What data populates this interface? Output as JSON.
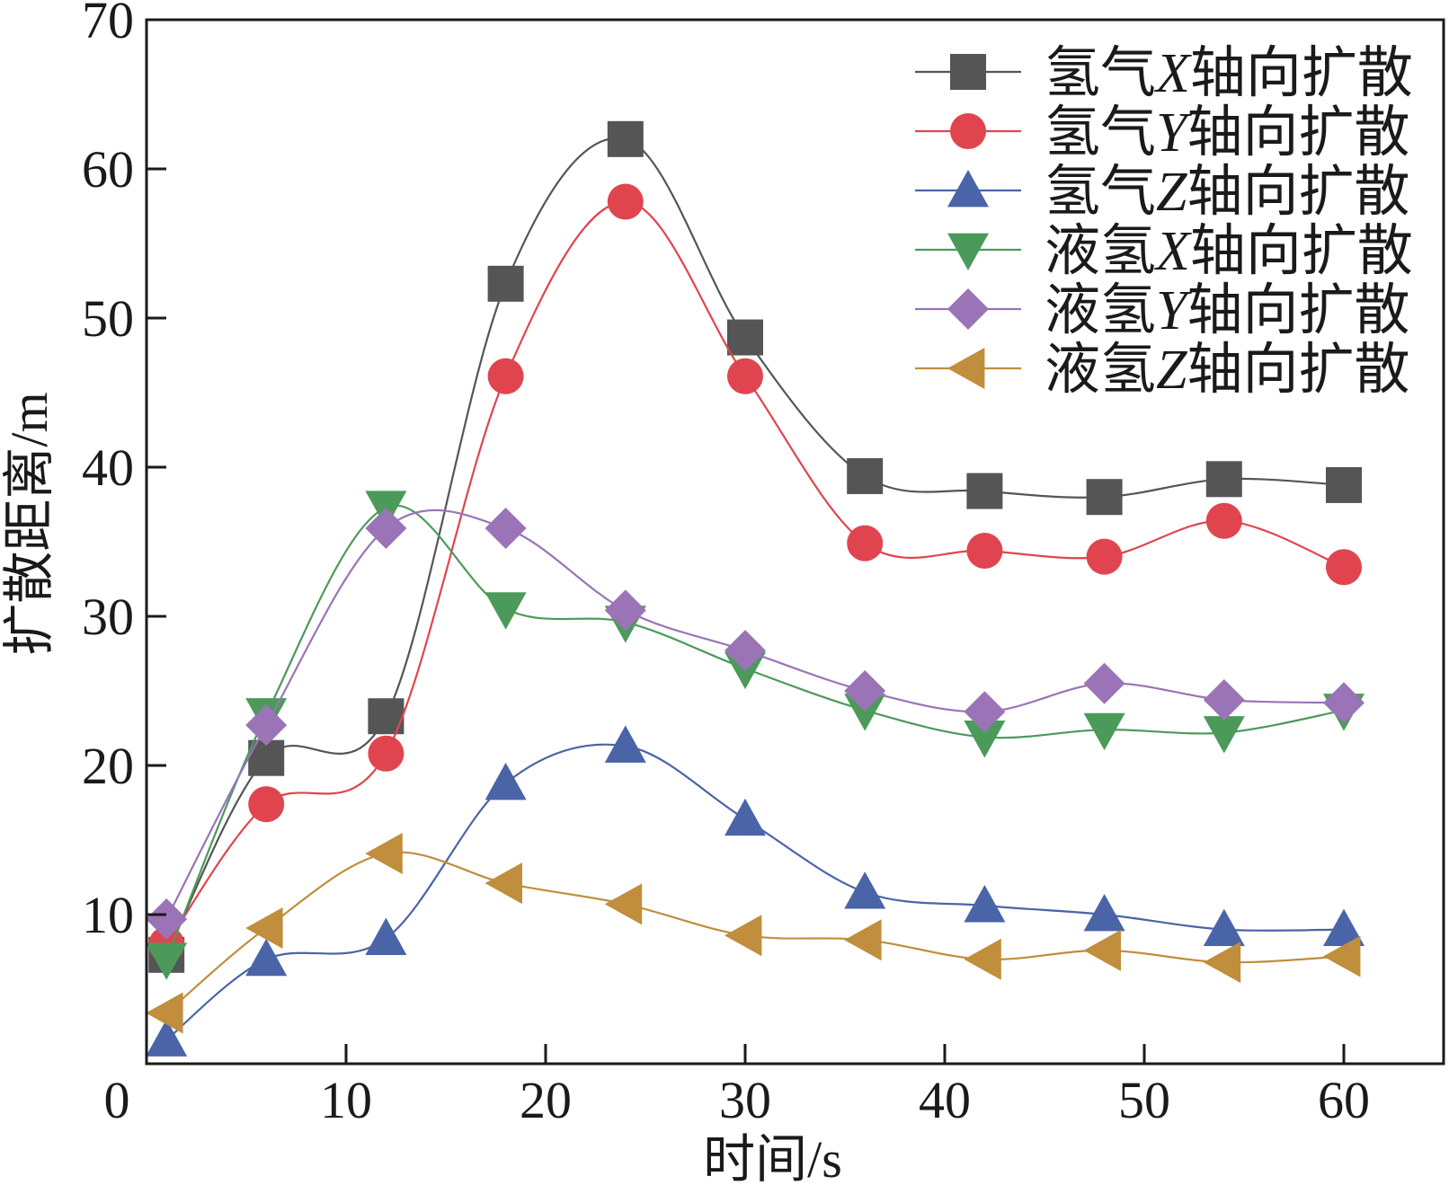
{
  "chart_data": {
    "type": "line",
    "title": "",
    "xlabel": "时间/s",
    "ylabel": "扩散距离/m",
    "xlim": [
      0,
      65
    ],
    "ylim": [
      0,
      70
    ],
    "x": [
      1,
      6,
      12,
      18,
      24,
      30,
      36,
      42,
      48,
      54,
      60
    ],
    "xticks": [
      0,
      10,
      20,
      30,
      40,
      50,
      60
    ],
    "yticks": [
      10,
      20,
      30,
      40,
      50,
      60,
      70
    ],
    "grid": false,
    "legend_position": "top-right",
    "series": [
      {
        "name": "氢气X轴向扩散",
        "name_prefix": "氢气",
        "name_axis": "X",
        "name_suffix": "轴向扩散",
        "color": "#555555",
        "marker": "square",
        "values": [
          7.3,
          20.5,
          23.3,
          52.3,
          62.0,
          48.7,
          39.4,
          38.4,
          38.0,
          39.2,
          38.8
        ]
      },
      {
        "name": "氢气Y轴向扩散",
        "name_prefix": "氢气",
        "name_axis": "Y",
        "name_suffix": "轴向扩散",
        "color": "#e0454f",
        "marker": "circle",
        "values": [
          8.0,
          17.4,
          20.8,
          46.1,
          57.8,
          46.1,
          34.9,
          34.4,
          34.0,
          36.4,
          33.3
        ]
      },
      {
        "name": "氢气Z轴向扩散",
        "name_prefix": "氢气",
        "name_axis": "Z",
        "name_suffix": "轴向扩散",
        "color": "#4a64a8",
        "marker": "triangle-up",
        "values": [
          1.6,
          7.0,
          8.4,
          18.8,
          21.3,
          16.4,
          11.5,
          10.6,
          10.0,
          9.0,
          9.0
        ]
      },
      {
        "name": "液氢X轴向扩散",
        "name_prefix": "液氢",
        "name_axis": "X",
        "name_suffix": "轴向扩散",
        "color": "#4c9a5a",
        "marker": "triangle-down",
        "values": [
          7.0,
          23.4,
          37.3,
          30.5,
          29.6,
          26.5,
          23.7,
          21.9,
          22.4,
          22.2,
          23.7
        ]
      },
      {
        "name": "液氢Y轴向扩散",
        "name_prefix": "液氢",
        "name_axis": "Y",
        "name_suffix": "轴向扩散",
        "color": "#9a74b6",
        "marker": "diamond",
        "values": [
          9.7,
          22.7,
          35.9,
          35.9,
          30.4,
          27.7,
          25.0,
          23.6,
          25.5,
          24.4,
          24.2
        ]
      },
      {
        "name": "液氢Z轴向扩散",
        "name_prefix": "液氢",
        "name_axis": "Z",
        "name_suffix": "轴向扩散",
        "color": "#c08e3c",
        "marker": "triangle-left",
        "values": [
          3.4,
          9.1,
          14.1,
          12.1,
          10.7,
          8.6,
          8.3,
          7.0,
          7.6,
          6.8,
          7.2
        ]
      }
    ]
  }
}
